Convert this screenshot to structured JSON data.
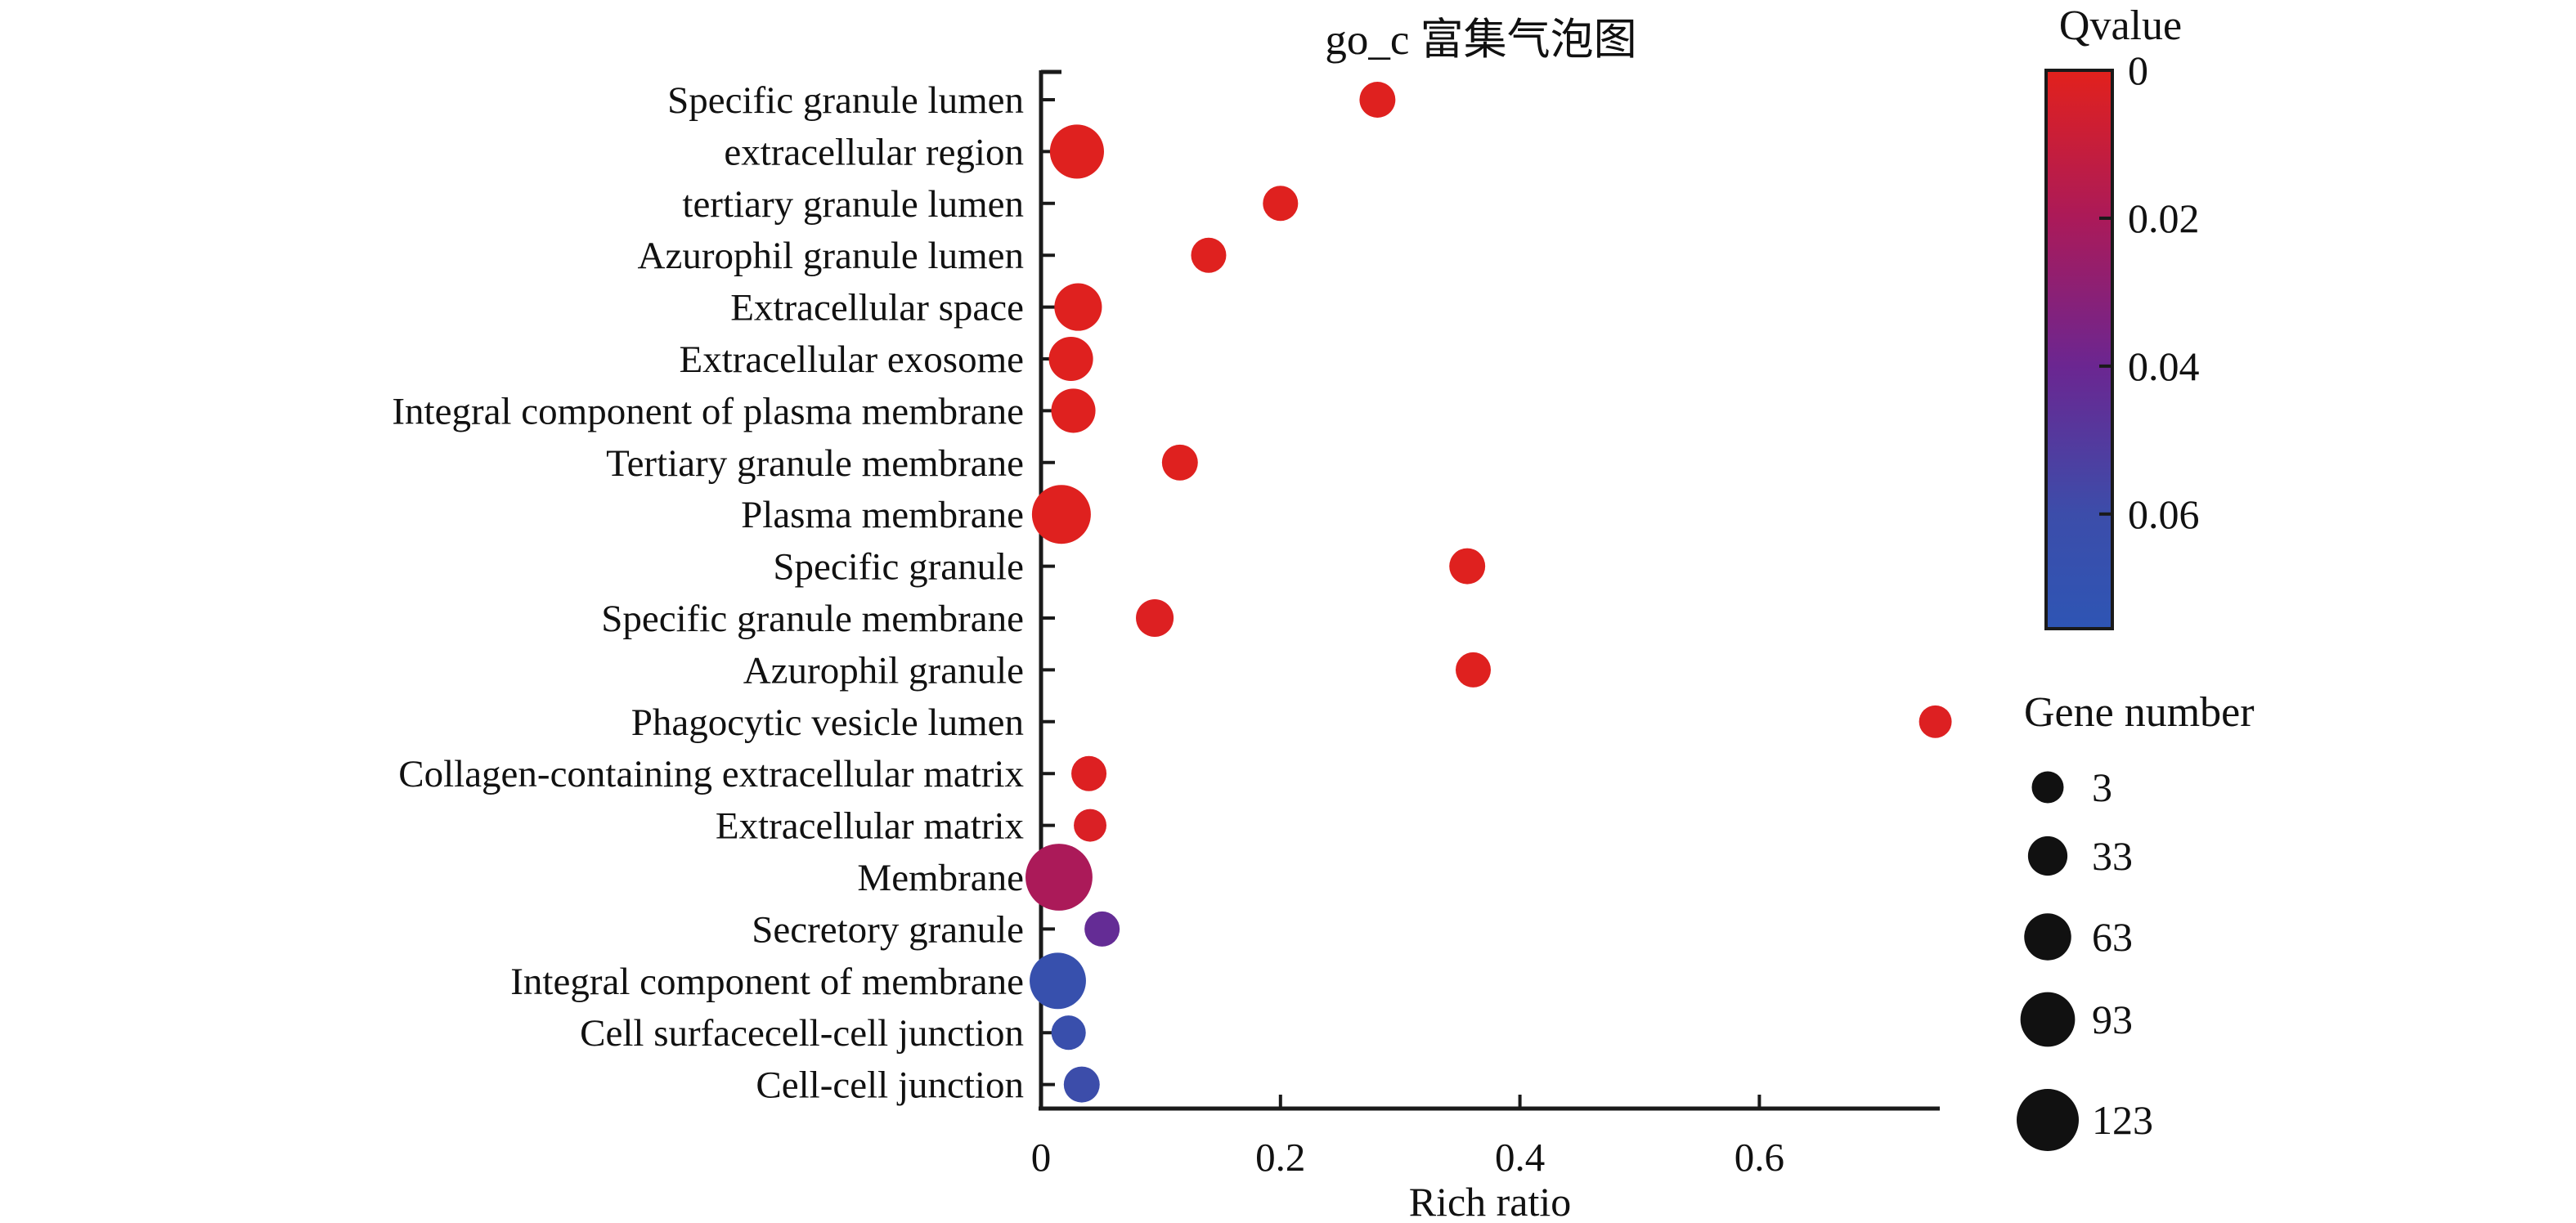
{
  "title": "go_c 富集气泡图",
  "xlabel": "Rich ratio",
  "x_axis": {
    "min": 0,
    "max": 0.751,
    "ticks": [
      0,
      0.2,
      0.4,
      0.6
    ],
    "tick_labels": [
      "0",
      "0.2",
      "0.4",
      "0.6"
    ]
  },
  "colorbar": {
    "title": "Qvalue",
    "ticks": [
      0,
      0.02,
      0.04,
      0.06
    ],
    "tick_labels": [
      "0",
      "0.02",
      "0.04",
      "0.06"
    ],
    "max": 0.0755,
    "stops": [
      [
        0,
        "#e2211c"
      ],
      [
        0.02,
        "#ab1a59"
      ],
      [
        0.04,
        "#6b2691"
      ],
      [
        0.06,
        "#3c4daa"
      ],
      [
        0.0755,
        "#2e55b4"
      ]
    ]
  },
  "size_legend": {
    "title": "Gene number",
    "entries": [
      {
        "label": "3",
        "n": 3
      },
      {
        "label": "33",
        "n": 33
      },
      {
        "label": "63",
        "n": 63
      },
      {
        "label": "93",
        "n": 93
      },
      {
        "label": "123",
        "n": 123
      }
    ]
  },
  "chart_data": {
    "type": "scatter",
    "title": "go_c 富集气泡图",
    "xlabel": "Rich ratio",
    "x_range": [
      0,
      0.75
    ],
    "x_ticks": [
      0,
      0.2,
      0.4,
      0.6
    ],
    "size_field": "gene_number",
    "color_field": "qvalue",
    "legend_position": "right",
    "grid": false,
    "points": [
      {
        "category": "Specific granule lumen",
        "rich_ratio": 0.281,
        "gene_number": 19,
        "qvalue": 0.001
      },
      {
        "category": "extracellular region",
        "rich_ratio": 0.03,
        "gene_number": 91,
        "qvalue": 0.001
      },
      {
        "category": "tertiary granule lumen",
        "rich_ratio": 0.2,
        "gene_number": 16,
        "qvalue": 0.001
      },
      {
        "category": "Azurophil granule lumen",
        "rich_ratio": 0.14,
        "gene_number": 16,
        "qvalue": 0.001
      },
      {
        "category": "Extracellular space",
        "rich_ratio": 0.031,
        "gene_number": 65,
        "qvalue": 0.001
      },
      {
        "category": "Extracellular exosome",
        "rich_ratio": 0.025,
        "gene_number": 52,
        "qvalue": 0.001
      },
      {
        "category": "Integral component of plasma membrane",
        "rich_ratio": 0.027,
        "gene_number": 52,
        "qvalue": 0.001
      },
      {
        "category": "Tertiary granule membrane",
        "rich_ratio": 0.116,
        "gene_number": 19,
        "qvalue": 0.001
      },
      {
        "category": "Plasma membrane",
        "rich_ratio": 0.017,
        "gene_number": 110,
        "qvalue": 0.001
      },
      {
        "category": "Specific granule",
        "rich_ratio": 0.356,
        "gene_number": 19,
        "qvalue": 0.001
      },
      {
        "category": "Specific granule membrane",
        "rich_ratio": 0.095,
        "gene_number": 26,
        "qvalue": 0.002
      },
      {
        "category": "Azurophil granule",
        "rich_ratio": 0.361,
        "gene_number": 16,
        "qvalue": 0.001
      },
      {
        "category": "Phagocytic vesicle lumen",
        "rich_ratio": 0.747,
        "gene_number": 6,
        "qvalue": 0.002
      },
      {
        "category": "Collagen-containing extracellular matrix",
        "rich_ratio": 0.04,
        "gene_number": 16,
        "qvalue": 0.002
      },
      {
        "category": "Extracellular matrix",
        "rich_ratio": 0.041,
        "gene_number": 6,
        "qvalue": 0.003
      },
      {
        "category": "Membrane",
        "rich_ratio": 0.015,
        "gene_number": 142,
        "qvalue": 0.02
      },
      {
        "category": "Secretory granule",
        "rich_ratio": 0.051,
        "gene_number": 16,
        "qvalue": 0.043
      },
      {
        "category": "Integral component of membrane",
        "rich_ratio": 0.014,
        "gene_number": 100,
        "qvalue": 0.065
      },
      {
        "category": "Cell surfacecell-cell junction",
        "rich_ratio": 0.023,
        "gene_number": 13,
        "qvalue": 0.063
      },
      {
        "category": "Cell-cell junction",
        "rich_ratio": 0.034,
        "gene_number": 19,
        "qvalue": 0.06
      }
    ]
  }
}
